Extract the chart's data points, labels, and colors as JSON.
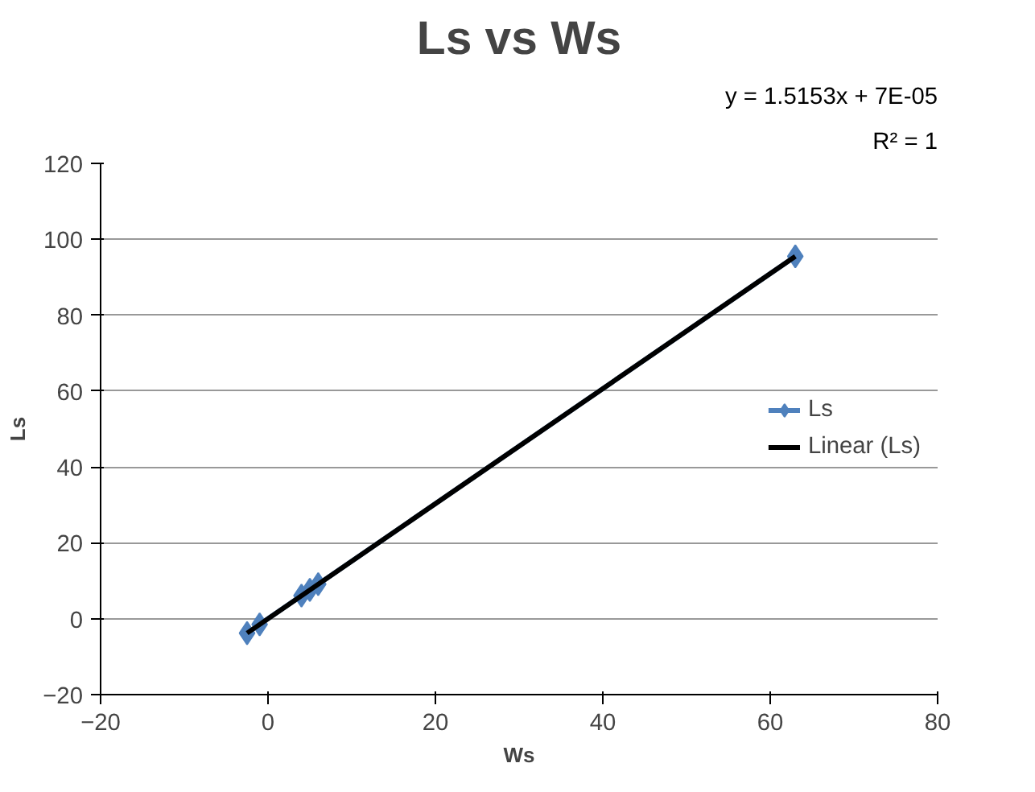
{
  "chart_data": {
    "type": "line",
    "title": "Ls vs Ws",
    "xlabel": "Ws",
    "ylabel": "Ls",
    "annotations": [
      "y = 1.5153x + 7E-05",
      "R² = 1"
    ],
    "series": [
      {
        "name": "Ls",
        "marker": "diamond",
        "color": "#4f81bd",
        "x": [
          -2.5,
          -1,
          4,
          5,
          6,
          63
        ],
        "values": [
          -3.8,
          -1.5,
          6.1,
          7.6,
          9.1,
          95.5
        ]
      },
      {
        "name": "Linear (Ls)",
        "marker": "none",
        "color": "#000000",
        "x": [
          -2.5,
          63
        ],
        "values": [
          -3.8,
          95.5
        ]
      }
    ],
    "xlim": [
      -20,
      80
    ],
    "xticks": [
      -20,
      0,
      20,
      40,
      60,
      80
    ],
    "ylim": [
      -20,
      120
    ],
    "yticks": [
      -20,
      0,
      20,
      40,
      60,
      80,
      100,
      120
    ],
    "grid": "y",
    "legend": "right"
  }
}
